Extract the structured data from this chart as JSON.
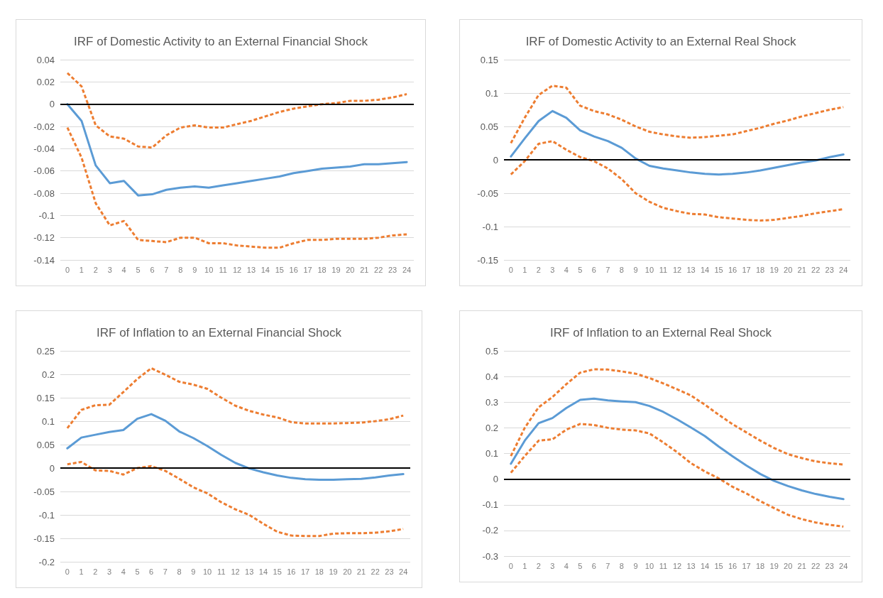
{
  "chart_data": [
    {
      "type": "line",
      "title": "IRF of Domestic Activity to an External Financial Shock",
      "x": [
        0,
        1,
        2,
        3,
        4,
        5,
        6,
        7,
        8,
        9,
        10,
        11,
        12,
        13,
        14,
        15,
        16,
        17,
        18,
        19,
        20,
        21,
        22,
        23,
        24
      ],
      "xlim": [
        -0.5,
        24.5
      ],
      "xticks": [
        0,
        1,
        2,
        3,
        4,
        5,
        6,
        7,
        8,
        9,
        10,
        11,
        12,
        13,
        14,
        15,
        16,
        17,
        18,
        19,
        20,
        21,
        22,
        23,
        24
      ],
      "ylim": [
        -0.14,
        0.04
      ],
      "yticks": [
        -0.14,
        -0.12,
        -0.1,
        -0.08,
        -0.06,
        -0.04,
        -0.02,
        0,
        0.02,
        0.04
      ],
      "grid": "y",
      "marker": "none",
      "ref_lines": [
        {
          "axis": "y",
          "value": 0,
          "color": "#000000"
        }
      ],
      "series": [
        {
          "color": "#5b9bd5",
          "line_style": "solid",
          "values": [
            0,
            -0.015,
            -0.055,
            -0.071,
            -0.069,
            -0.082,
            -0.081,
            -0.077,
            -0.075,
            -0.074,
            -0.075,
            -0.073,
            -0.071,
            -0.069,
            -0.067,
            -0.065,
            -0.062,
            -0.06,
            -0.058,
            -0.057,
            -0.056,
            -0.054,
            -0.054,
            -0.053,
            -0.052
          ]
        },
        {
          "color": "#ed7d31",
          "line_style": "dashed",
          "values": [
            0.028,
            0.016,
            -0.019,
            -0.029,
            -0.031,
            -0.038,
            -0.039,
            -0.028,
            -0.021,
            -0.019,
            -0.021,
            -0.021,
            -0.018,
            -0.015,
            -0.011,
            -0.007,
            -0.004,
            -0.002,
            0,
            0.001,
            0.003,
            0.003,
            0.004,
            0.006,
            0.009
          ]
        },
        {
          "color": "#ed7d31",
          "line_style": "dashed",
          "values": [
            -0.021,
            -0.048,
            -0.089,
            -0.109,
            -0.105,
            -0.122,
            -0.123,
            -0.124,
            -0.12,
            -0.12,
            -0.125,
            -0.125,
            -0.127,
            -0.128,
            -0.129,
            -0.129,
            -0.125,
            -0.122,
            -0.122,
            -0.121,
            -0.121,
            -0.121,
            -0.12,
            -0.118,
            -0.117
          ]
        }
      ]
    },
    {
      "type": "line",
      "title": "IRF of Domestic Activity to an External Real Shock",
      "x": [
        0,
        1,
        2,
        3,
        4,
        5,
        6,
        7,
        8,
        9,
        10,
        11,
        12,
        13,
        14,
        15,
        16,
        17,
        18,
        19,
        20,
        21,
        22,
        23,
        24
      ],
      "xlim": [
        -0.5,
        24.5
      ],
      "xticks": [
        0,
        1,
        2,
        3,
        4,
        5,
        6,
        7,
        8,
        9,
        10,
        11,
        12,
        13,
        14,
        15,
        16,
        17,
        18,
        19,
        20,
        21,
        22,
        23,
        24
      ],
      "ylim": [
        -0.15,
        0.15
      ],
      "yticks": [
        -0.15,
        -0.1,
        -0.05,
        0,
        0.05,
        0.1,
        0.15
      ],
      "grid": "y",
      "marker": "none",
      "ref_lines": [
        {
          "axis": "y",
          "value": 0,
          "color": "#000000"
        }
      ],
      "series": [
        {
          "color": "#5b9bd5",
          "line_style": "solid",
          "values": [
            0.005,
            0.032,
            0.058,
            0.073,
            0.063,
            0.044,
            0.035,
            0.028,
            0.018,
            0.002,
            -0.009,
            -0.013,
            -0.016,
            -0.019,
            -0.021,
            -0.022,
            -0.021,
            -0.019,
            -0.016,
            -0.012,
            -0.008,
            -0.004,
            -0.001,
            0.004,
            0.008
          ]
        },
        {
          "color": "#ed7d31",
          "line_style": "dashed",
          "values": [
            0.025,
            0.063,
            0.097,
            0.111,
            0.108,
            0.081,
            0.073,
            0.068,
            0.06,
            0.05,
            0.042,
            0.038,
            0.035,
            0.033,
            0.034,
            0.036,
            0.038,
            0.043,
            0.048,
            0.054,
            0.059,
            0.065,
            0.07,
            0.075,
            0.079
          ]
        },
        {
          "color": "#ed7d31",
          "line_style": "dashed",
          "values": [
            -0.022,
            -0.002,
            0.024,
            0.028,
            0.015,
            0.004,
            -0.002,
            -0.013,
            -0.029,
            -0.05,
            -0.063,
            -0.072,
            -0.077,
            -0.081,
            -0.082,
            -0.086,
            -0.088,
            -0.09,
            -0.091,
            -0.09,
            -0.087,
            -0.084,
            -0.08,
            -0.077,
            -0.074
          ]
        }
      ]
    },
    {
      "type": "line",
      "title": "IRF of Inflation to an External Financial Shock",
      "x": [
        0,
        1,
        2,
        3,
        4,
        5,
        6,
        7,
        8,
        9,
        10,
        11,
        12,
        13,
        14,
        15,
        16,
        17,
        18,
        19,
        20,
        21,
        22,
        23,
        24
      ],
      "xlim": [
        -0.5,
        24.5
      ],
      "xticks": [
        0,
        1,
        2,
        3,
        4,
        5,
        6,
        7,
        8,
        9,
        10,
        11,
        12,
        13,
        14,
        15,
        16,
        17,
        18,
        19,
        20,
        21,
        22,
        23,
        24
      ],
      "ylim": [
        -0.2,
        0.25
      ],
      "yticks": [
        -0.2,
        -0.15,
        -0.1,
        -0.05,
        0,
        0.05,
        0.1,
        0.15,
        0.2,
        0.25
      ],
      "grid": "y",
      "marker": "none",
      "ref_lines": [
        {
          "axis": "y",
          "value": 0,
          "color": "#000000"
        }
      ],
      "series": [
        {
          "color": "#5b9bd5",
          "line_style": "solid",
          "values": [
            0.042,
            0.065,
            0.071,
            0.077,
            0.081,
            0.105,
            0.115,
            0.101,
            0.078,
            0.064,
            0.047,
            0.028,
            0.011,
            -0.001,
            -0.009,
            -0.016,
            -0.021,
            -0.024,
            -0.025,
            -0.025,
            -0.024,
            -0.023,
            -0.02,
            -0.016,
            -0.013
          ]
        },
        {
          "color": "#ed7d31",
          "line_style": "dashed",
          "values": [
            0.085,
            0.124,
            0.134,
            0.135,
            0.162,
            0.19,
            0.213,
            0.199,
            0.184,
            0.178,
            0.169,
            0.15,
            0.133,
            0.122,
            0.114,
            0.108,
            0.098,
            0.095,
            0.095,
            0.095,
            0.096,
            0.097,
            0.1,
            0.104,
            0.112
          ]
        },
        {
          "color": "#ed7d31",
          "line_style": "dashed",
          "values": [
            0.008,
            0.013,
            -0.005,
            -0.006,
            -0.014,
            0,
            0.004,
            -0.006,
            -0.023,
            -0.041,
            -0.054,
            -0.073,
            -0.088,
            -0.1,
            -0.119,
            -0.136,
            -0.144,
            -0.145,
            -0.145,
            -0.14,
            -0.139,
            -0.139,
            -0.138,
            -0.135,
            -0.13
          ]
        }
      ]
    },
    {
      "type": "line",
      "title": "IRF of Inflation to an External Real Shock",
      "x": [
        0,
        1,
        2,
        3,
        4,
        5,
        6,
        7,
        8,
        9,
        10,
        11,
        12,
        13,
        14,
        15,
        16,
        17,
        18,
        19,
        20,
        21,
        22,
        23,
        24
      ],
      "xlim": [
        -0.5,
        24.5
      ],
      "xticks": [
        0,
        1,
        2,
        3,
        4,
        5,
        6,
        7,
        8,
        9,
        10,
        11,
        12,
        13,
        14,
        15,
        16,
        17,
        18,
        19,
        20,
        21,
        22,
        23,
        24
      ],
      "ylim": [
        -0.3,
        0.5
      ],
      "yticks": [
        -0.3,
        -0.2,
        -0.1,
        0,
        0.1,
        0.2,
        0.3,
        0.4,
        0.5
      ],
      "grid": "y",
      "marker": "none",
      "ref_lines": [
        {
          "axis": "y",
          "value": 0,
          "color": "#000000"
        }
      ],
      "series": [
        {
          "color": "#5b9bd5",
          "line_style": "solid",
          "values": [
            0.06,
            0.15,
            0.218,
            0.238,
            0.277,
            0.309,
            0.314,
            0.307,
            0.303,
            0.3,
            0.285,
            0.262,
            0.233,
            0.201,
            0.168,
            0.127,
            0.089,
            0.053,
            0.02,
            -0.007,
            -0.027,
            -0.044,
            -0.058,
            -0.069,
            -0.078
          ]
        },
        {
          "color": "#ed7d31",
          "line_style": "dashed",
          "values": [
            0.09,
            0.2,
            0.28,
            0.32,
            0.37,
            0.415,
            0.428,
            0.427,
            0.42,
            0.411,
            0.394,
            0.373,
            0.35,
            0.326,
            0.29,
            0.251,
            0.214,
            0.182,
            0.15,
            0.121,
            0.097,
            0.082,
            0.069,
            0.062,
            0.057
          ]
        },
        {
          "color": "#ed7d31",
          "line_style": "dashed",
          "values": [
            0.025,
            0.09,
            0.15,
            0.155,
            0.193,
            0.215,
            0.211,
            0.2,
            0.193,
            0.19,
            0.178,
            0.143,
            0.105,
            0.062,
            0.03,
            0.003,
            -0.03,
            -0.056,
            -0.086,
            -0.113,
            -0.139,
            -0.156,
            -0.169,
            -0.178,
            -0.185
          ]
        }
      ]
    }
  ]
}
